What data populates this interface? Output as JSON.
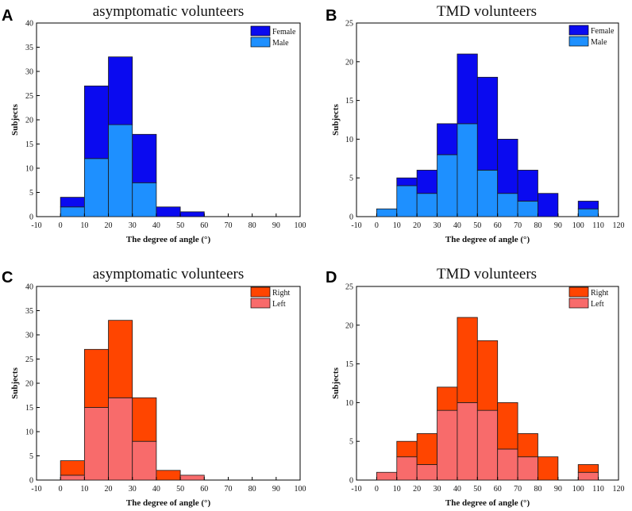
{
  "chart_data": [
    {
      "panel": "A",
      "type": "bar",
      "stacked": true,
      "title": "asymptomatic volunteers",
      "xlabel": "The degree of angle (°)",
      "ylabel": "Subjects",
      "xlim": [
        -10,
        100
      ],
      "ylim": [
        0,
        40
      ],
      "xticks": [
        -10,
        0,
        10,
        20,
        30,
        40,
        50,
        60,
        70,
        80,
        90,
        100
      ],
      "yticks": [
        0,
        5,
        10,
        15,
        20,
        25,
        30,
        35,
        40
      ],
      "bins": [
        [
          0,
          10
        ],
        [
          10,
          20
        ],
        [
          20,
          30
        ],
        [
          30,
          40
        ],
        [
          40,
          50
        ],
        [
          50,
          60
        ]
      ],
      "series": [
        {
          "name": "Male",
          "values": [
            2,
            12,
            19,
            7,
            0,
            0
          ],
          "color": "#1e90ff"
        },
        {
          "name": "Female",
          "values": [
            2,
            15,
            14,
            10,
            2,
            1
          ],
          "color": "#0a0af0"
        }
      ],
      "legend": [
        "Female",
        "Male"
      ],
      "legend_position": "top-right"
    },
    {
      "panel": "B",
      "type": "bar",
      "stacked": true,
      "title": "TMD volunteers",
      "xlabel": "The degree of angle (°)",
      "ylabel": "Subjects",
      "xlim": [
        -10,
        120
      ],
      "ylim": [
        0,
        25
      ],
      "xticks": [
        -10,
        0,
        10,
        20,
        30,
        40,
        50,
        60,
        70,
        80,
        90,
        100,
        110,
        120
      ],
      "yticks": [
        0,
        5,
        10,
        15,
        20,
        25
      ],
      "bins": [
        [
          0,
          10
        ],
        [
          10,
          20
        ],
        [
          20,
          30
        ],
        [
          30,
          40
        ],
        [
          40,
          50
        ],
        [
          50,
          60
        ],
        [
          60,
          70
        ],
        [
          70,
          80
        ],
        [
          80,
          90
        ],
        [
          100,
          110
        ]
      ],
      "series": [
        {
          "name": "Male",
          "values": [
            1,
            4,
            3,
            8,
            12,
            6,
            3,
            2,
            0,
            1
          ],
          "color": "#1e90ff"
        },
        {
          "name": "Female",
          "values": [
            0,
            1,
            3,
            4,
            9,
            12,
            7,
            4,
            3,
            1
          ],
          "color": "#0a0af0"
        }
      ],
      "legend": [
        "Female",
        "Male"
      ],
      "legend_position": "top-right"
    },
    {
      "panel": "C",
      "type": "bar",
      "stacked": true,
      "title": "asymptomatic volunteers",
      "xlabel": "The degree of angle (°)",
      "ylabel": "Subjects",
      "xlim": [
        -10,
        100
      ],
      "ylim": [
        0,
        40
      ],
      "xticks": [
        -10,
        0,
        10,
        20,
        30,
        40,
        50,
        60,
        70,
        80,
        90,
        100
      ],
      "yticks": [
        0,
        5,
        10,
        15,
        20,
        25,
        30,
        35,
        40
      ],
      "bins": [
        [
          0,
          10
        ],
        [
          10,
          20
        ],
        [
          20,
          30
        ],
        [
          30,
          40
        ],
        [
          40,
          50
        ],
        [
          50,
          60
        ]
      ],
      "series": [
        {
          "name": "Left",
          "values": [
            1,
            15,
            17,
            8,
            0,
            1
          ],
          "color": "#f86b6b"
        },
        {
          "name": "Right",
          "values": [
            3,
            12,
            16,
            9,
            2,
            0
          ],
          "color": "#ff4500"
        }
      ],
      "legend": [
        "Right",
        "Left"
      ],
      "legend_position": "top-right"
    },
    {
      "panel": "D",
      "type": "bar",
      "stacked": true,
      "title": "TMD volunteers",
      "xlabel": "The degree of angle (°)",
      "ylabel": "Subjects",
      "xlim": [
        -10,
        120
      ],
      "ylim": [
        0,
        25
      ],
      "xticks": [
        -10,
        0,
        10,
        20,
        30,
        40,
        50,
        60,
        70,
        80,
        90,
        100,
        110,
        120
      ],
      "yticks": [
        0,
        5,
        10,
        15,
        20,
        25
      ],
      "bins": [
        [
          0,
          10
        ],
        [
          10,
          20
        ],
        [
          20,
          30
        ],
        [
          30,
          40
        ],
        [
          40,
          50
        ],
        [
          50,
          60
        ],
        [
          60,
          70
        ],
        [
          70,
          80
        ],
        [
          80,
          90
        ],
        [
          100,
          110
        ]
      ],
      "series": [
        {
          "name": "Left",
          "values": [
            1,
            3,
            2,
            9,
            10,
            9,
            4,
            3,
            0,
            1
          ],
          "color": "#f86b6b"
        },
        {
          "name": "Right",
          "values": [
            0,
            2,
            4,
            3,
            11,
            9,
            6,
            3,
            3,
            1
          ],
          "color": "#ff4500"
        }
      ],
      "legend": [
        "Right",
        "Left"
      ],
      "legend_position": "top-right"
    }
  ]
}
